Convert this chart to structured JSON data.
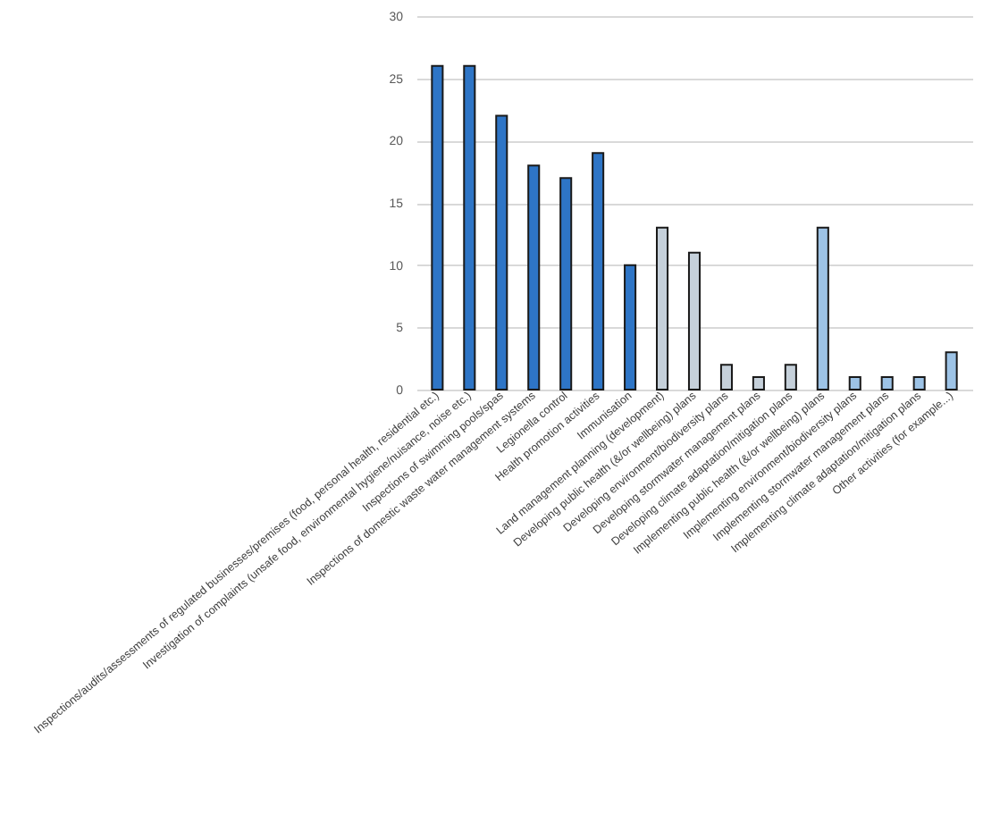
{
  "chart_data": {
    "type": "bar",
    "categories": [
      "Inspections/audits/assessments of regulated businesses/premises (food, personal health, residential etc.)",
      "Investigation of complaints (unsafe food, environmental hygiene/nuisance, noise etc.)",
      "Inspections of swimming pools/spas",
      "Inspections of domestic waste water management systems",
      "Legionella control",
      "Health promotion activities",
      "Immunisation",
      "Land management planning (development)",
      "Developing public health (&/or wellbeing) plans",
      "Developing environment/biodiversity plans",
      "Developing stormwater management plans",
      "Developing climate adaptation/mitigation plans",
      "Implementing public health (&/or wellbeing) plans",
      "Implementing environment/biodiversity plans",
      "Implementing stormwater management plans",
      "Implementing climate adaptation/mitigation plans",
      "Other activities (for example...)"
    ],
    "values": [
      26,
      26,
      22,
      18,
      17,
      19,
      10,
      13,
      11,
      2,
      1,
      2,
      13,
      1,
      1,
      1,
      3
    ],
    "colors": [
      "#2e75c6",
      "#2e75c6",
      "#2e75c6",
      "#2e75c6",
      "#2e75c6",
      "#2e75c6",
      "#2e75c6",
      "#c5d0da",
      "#c5d0da",
      "#c5d0da",
      "#c5d0da",
      "#c5d0da",
      "#9dc3e6",
      "#9dc3e6",
      "#9dc3e6",
      "#9dc3e6",
      "#9dc3e6"
    ],
    "ylim": [
      0,
      30
    ],
    "yticks": [
      0,
      5,
      10,
      15,
      20,
      25,
      30
    ],
    "grid": "y"
  }
}
